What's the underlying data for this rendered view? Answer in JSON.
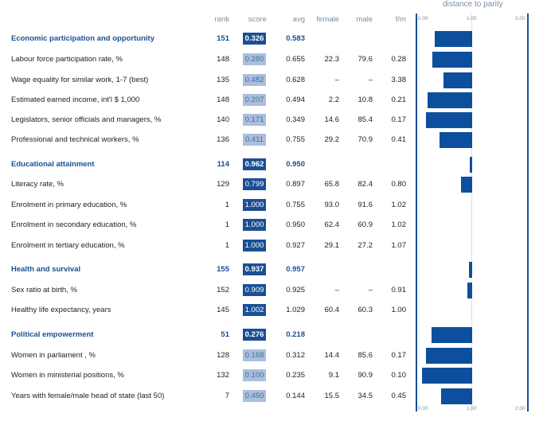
{
  "headers": {
    "rank": "rank",
    "score": "score",
    "avg": "avg",
    "female": "female",
    "male": "male",
    "fm": "f/m",
    "distance": "distance to parity"
  },
  "axis": {
    "top_ticks": [
      "0.00",
      "1.00",
      "2.00"
    ],
    "bottom_ticks": [
      "0.00",
      "1.00",
      "2.00"
    ]
  },
  "rows": [
    {
      "type": "section",
      "label": "Economic participation and opportunity",
      "rank": "151",
      "score": "0.326",
      "avg": "0.583",
      "female": "",
      "male": "",
      "fm": "",
      "bar": 0.674
    },
    {
      "type": "sub",
      "label": "Labour force participation rate, %",
      "rank": "148",
      "score": "0.280",
      "avg": "0.655",
      "female": "22.3",
      "male": "79.6",
      "fm": "0.28",
      "bar": 0.72
    },
    {
      "type": "sub",
      "label": "Wage equality for similar work, 1-7 (best)",
      "rank": "135",
      "score": "0.482",
      "avg": "0.628",
      "female": "–",
      "male": "–",
      "fm": "3.38",
      "bar": 0.518
    },
    {
      "type": "sub",
      "label": "Estimated earned income, int'l $ 1,000",
      "rank": "148",
      "score": "0.207",
      "avg": "0.494",
      "female": "2.2",
      "male": "10.8",
      "fm": "0.21",
      "bar": 0.793
    },
    {
      "type": "sub",
      "label": "Legislators, senior officials and managers, %",
      "rank": "140",
      "score": "0.171",
      "avg": "0.349",
      "female": "14.6",
      "male": "85.4",
      "fm": "0.17",
      "bar": 0.829
    },
    {
      "type": "sub",
      "label": "Professional and technical workers, %",
      "rank": "136",
      "score": "0.411",
      "avg": "0.755",
      "female": "29.2",
      "male": "70.9",
      "fm": "0.41",
      "bar": 0.589
    },
    {
      "type": "section",
      "label": "Educational attainment",
      "rank": "114",
      "score": "0.962",
      "avg": "0.950",
      "female": "",
      "male": "",
      "fm": "",
      "bar": 0.038
    },
    {
      "type": "sub",
      "label": "Literacy rate, %",
      "rank": "129",
      "score": "0.799",
      "avg": "0.897",
      "female": "65.8",
      "male": "82.4",
      "fm": "0.80",
      "bar": 0.201
    },
    {
      "type": "sub",
      "label": "Enrolment in primary education, %",
      "rank": "1",
      "score": "1.000",
      "avg": "0.755",
      "female": "93.0",
      "male": "91.6",
      "fm": "1.02",
      "bar": 0.0
    },
    {
      "type": "sub",
      "label": "Enrolment in secondary education, %",
      "rank": "1",
      "score": "1.000",
      "avg": "0.950",
      "female": "62.4",
      "male": "60.9",
      "fm": "1.02",
      "bar": 0.0
    },
    {
      "type": "sub",
      "label": "Enrolment in tertiary education, %",
      "rank": "1",
      "score": "1.000",
      "avg": "0.927",
      "female": "29.1",
      "male": "27.2",
      "fm": "1.07",
      "bar": 0.0
    },
    {
      "type": "section",
      "label": "Health and survival",
      "rank": "155",
      "score": "0.937",
      "avg": "0.957",
      "female": "",
      "male": "",
      "fm": "",
      "bar": 0.063
    },
    {
      "type": "sub",
      "label": "Sex ratio at birth, %",
      "rank": "152",
      "score": "0.909",
      "avg": "0.925",
      "female": "–",
      "male": "–",
      "fm": "0.91",
      "bar": 0.091
    },
    {
      "type": "sub",
      "label": "Healthy life expectancy, years",
      "rank": "145",
      "score": "1.002",
      "avg": "1.029",
      "female": "60.4",
      "male": "60.3",
      "fm": "1.00",
      "bar": 0.0
    },
    {
      "type": "section",
      "label": "Political empowerment",
      "rank": "51",
      "score": "0.276",
      "avg": "0.218",
      "female": "",
      "male": "",
      "fm": "",
      "bar": 0.724
    },
    {
      "type": "sub",
      "label": "Women in parliament , %",
      "rank": "128",
      "score": "0.168",
      "avg": "0.312",
      "female": "14.4",
      "male": "85.6",
      "fm": "0.17",
      "bar": 0.832
    },
    {
      "type": "sub",
      "label": "Women in ministerial positions, %",
      "rank": "132",
      "score": "0.100",
      "avg": "0.235",
      "female": "9.1",
      "male": "90.9",
      "fm": "0.10",
      "bar": 0.9
    },
    {
      "type": "sub",
      "label": "Years with female/male head of state (last 50)",
      "rank": "7",
      "score": "0.450",
      "avg": "0.144",
      "female": "15.5",
      "male": "34.5",
      "fm": "0.45",
      "bar": 0.55
    }
  ]
}
